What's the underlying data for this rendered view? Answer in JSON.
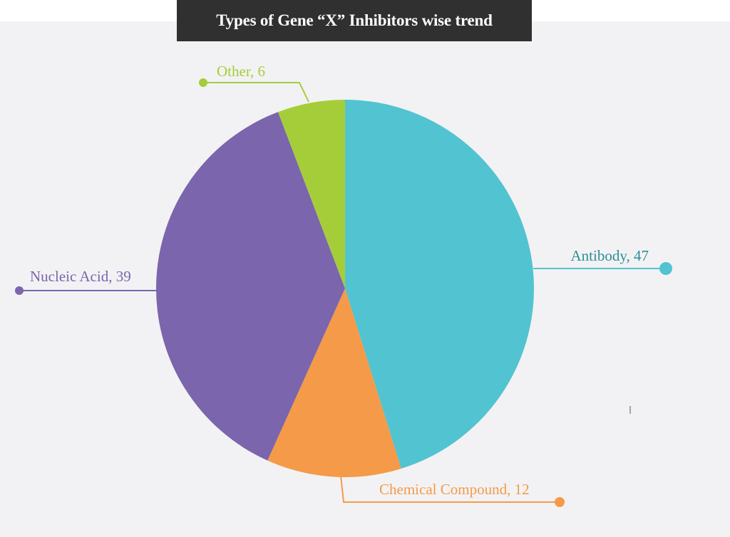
{
  "chart_data": {
    "type": "pie",
    "title": "Types of Gene “X” Inhibitors wise trend",
    "slices": [
      {
        "name": "Antibody",
        "value": 47,
        "color": "#52c3d0",
        "label": "Antibody, 47"
      },
      {
        "name": "Chemical Compound",
        "value": 12,
        "color": "#f59a48",
        "label": "Chemical Compound, 12"
      },
      {
        "name": "Nucleic Acid",
        "value": 39,
        "color": "#7b65ad",
        "label": "Nucleic Acid, 39"
      },
      {
        "name": "Other",
        "value": 6,
        "color": "#a5cd3a",
        "label": "Other, 6"
      }
    ]
  }
}
